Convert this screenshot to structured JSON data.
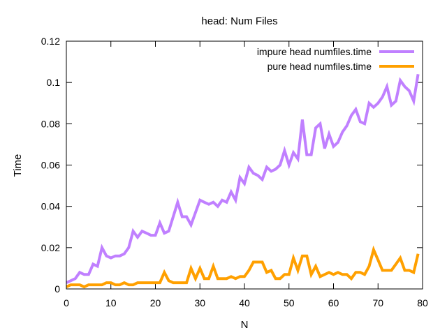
{
  "chart_data": {
    "type": "line",
    "title": "head: Num Files",
    "xlabel": "N",
    "ylabel": "Time",
    "xlim": [
      0,
      80
    ],
    "ylim": [
      0,
      0.12
    ],
    "xticks": [
      0,
      10,
      20,
      30,
      40,
      50,
      60,
      70,
      80
    ],
    "yticks": [
      0,
      0.02,
      0.04,
      0.06,
      0.08,
      0.1,
      0.12
    ],
    "grid": false,
    "legend": "top-right",
    "x": [
      0,
      1,
      2,
      3,
      4,
      5,
      6,
      7,
      8,
      9,
      10,
      11,
      12,
      13,
      14,
      15,
      16,
      17,
      18,
      19,
      20,
      21,
      22,
      23,
      24,
      25,
      26,
      27,
      28,
      29,
      30,
      31,
      32,
      33,
      34,
      35,
      36,
      37,
      38,
      39,
      40,
      41,
      42,
      43,
      44,
      45,
      46,
      47,
      48,
      49,
      50,
      51,
      52,
      53,
      54,
      55,
      56,
      57,
      58,
      59,
      60,
      61,
      62,
      63,
      64,
      65,
      66,
      67,
      68,
      69,
      70,
      71,
      72,
      73,
      74,
      75,
      76,
      77,
      78,
      79
    ],
    "series": [
      {
        "name": "impure head numfiles.time",
        "color": "#c080ff",
        "values": [
          0.003,
          0.004,
          0.005,
          0.008,
          0.007,
          0.007,
          0.012,
          0.011,
          0.02,
          0.016,
          0.015,
          0.016,
          0.016,
          0.017,
          0.02,
          0.028,
          0.025,
          0.028,
          0.027,
          0.026,
          0.026,
          0.032,
          0.027,
          0.028,
          0.035,
          0.042,
          0.035,
          0.035,
          0.031,
          0.037,
          0.043,
          0.042,
          0.041,
          0.042,
          0.04,
          0.043,
          0.042,
          0.047,
          0.043,
          0.054,
          0.051,
          0.059,
          0.056,
          0.055,
          0.053,
          0.059,
          0.057,
          0.058,
          0.06,
          0.067,
          0.06,
          0.066,
          0.063,
          0.082,
          0.065,
          0.065,
          0.078,
          0.08,
          0.068,
          0.075,
          0.069,
          0.071,
          0.076,
          0.079,
          0.084,
          0.087,
          0.081,
          0.08,
          0.09,
          0.088,
          0.09,
          0.093,
          0.098,
          0.089,
          0.091,
          0.101,
          0.098,
          0.096,
          0.091,
          0.104
        ]
      },
      {
        "name": "pure head numfiles.time",
        "color": "#ffa000",
        "values": [
          0.001,
          0.002,
          0.002,
          0.002,
          0.001,
          0.002,
          0.002,
          0.002,
          0.002,
          0.003,
          0.003,
          0.002,
          0.002,
          0.003,
          0.002,
          0.002,
          0.003,
          0.003,
          0.003,
          0.003,
          0.003,
          0.003,
          0.008,
          0.004,
          0.003,
          0.003,
          0.003,
          0.003,
          0.01,
          0.005,
          0.01,
          0.005,
          0.005,
          0.011,
          0.005,
          0.005,
          0.005,
          0.006,
          0.005,
          0.006,
          0.006,
          0.009,
          0.013,
          0.013,
          0.013,
          0.008,
          0.009,
          0.005,
          0.005,
          0.007,
          0.007,
          0.015,
          0.009,
          0.016,
          0.016,
          0.007,
          0.011,
          0.006,
          0.007,
          0.008,
          0.007,
          0.008,
          0.007,
          0.007,
          0.005,
          0.008,
          0.008,
          0.007,
          0.011,
          0.019,
          0.014,
          0.009,
          0.009,
          0.009,
          0.012,
          0.015,
          0.009,
          0.009,
          0.008,
          0.017
        ]
      }
    ]
  }
}
